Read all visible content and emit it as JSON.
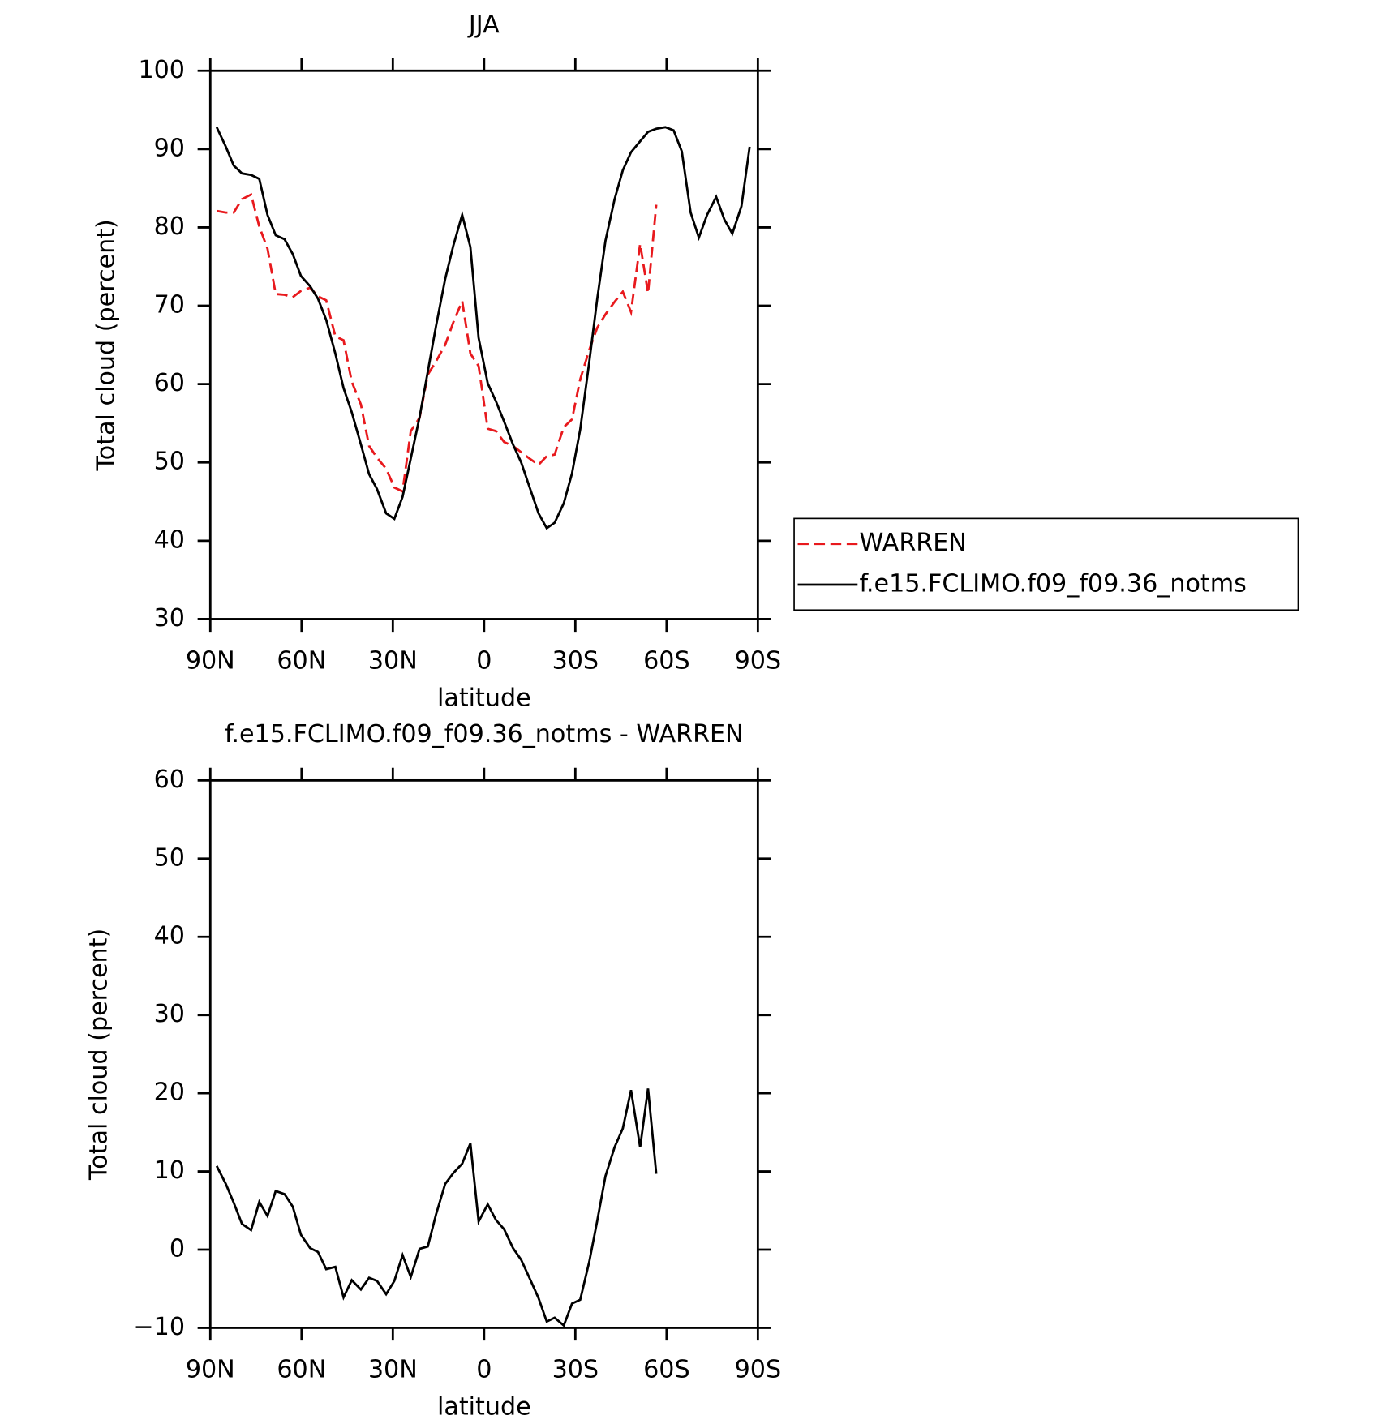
{
  "chart_data": [
    {
      "type": "line",
      "title": "JJA",
      "xlabel": "latitude",
      "ylabel": "Total cloud (percent)",
      "x": [
        87.9,
        84.9,
        82.3,
        79.6,
        76.6,
        73.9,
        71.2,
        68.5,
        65.6,
        62.9,
        60.2,
        57.2,
        54.6,
        51.9,
        48.9,
        46.2,
        43.5,
        40.5,
        37.8,
        35.2,
        32.2,
        29.5,
        26.8,
        24.1,
        21.2,
        18.5,
        15.8,
        12.8,
        10.1,
        7.2,
        4.5,
        1.8,
        -1.2,
        -3.9,
        -6.6,
        -9.5,
        -12.2,
        -14.9,
        -17.9,
        -20.6,
        -23.2,
        -26.2,
        -28.9,
        -31.6,
        -34.6,
        -37.2,
        -39.9,
        -42.9,
        -45.6,
        -48.3,
        -51.3,
        -53.9,
        -56.6,
        -59.6,
        -62.3,
        -65.0,
        -67.9,
        -70.6,
        -73.3,
        -76.3,
        -79.0,
        -81.6,
        -84.6,
        -87.3
      ],
      "series": [
        {
          "name": "WARREN",
          "color": "#e8191d",
          "linestyle": "dashed",
          "values": [
            82.1,
            81.9,
            81.9,
            83.6,
            84.2,
            80.1,
            77.3,
            71.5,
            71.4,
            71.1,
            71.9,
            72.3,
            71.2,
            70.7,
            66.1,
            65.6,
            60.3,
            57.4,
            52.1,
            50.6,
            49.2,
            46.8,
            46.3,
            54.0,
            55.7,
            61.2,
            62.9,
            65.0,
            67.9,
            70.6,
            63.9,
            62.3,
            54.3,
            54.0,
            52.6,
            52.1,
            51.3,
            50.5,
            49.7,
            50.8,
            51.0,
            54.5,
            55.5,
            60.6,
            64.4,
            67.2,
            68.9,
            70.5,
            71.8,
            69.2,
            77.9,
            71.6,
            82.9,
            null,
            null,
            null,
            null,
            null,
            null,
            null,
            null,
            null,
            null,
            null
          ]
        },
        {
          "name": "f.e15.FCLIMO.f09_f09.36_notms",
          "color": "#000000",
          "linestyle": "solid",
          "values": [
            92.8,
            90.3,
            87.9,
            86.9,
            86.7,
            86.2,
            81.6,
            79.0,
            78.5,
            76.6,
            73.8,
            72.5,
            70.9,
            68.2,
            63.9,
            59.5,
            56.4,
            52.3,
            48.5,
            46.6,
            43.5,
            42.8,
            45.6,
            50.5,
            55.8,
            61.6,
            67.4,
            73.4,
            77.7,
            81.6,
            77.5,
            65.9,
            60.1,
            57.8,
            55.2,
            52.3,
            50.0,
            46.9,
            43.5,
            41.6,
            42.3,
            44.8,
            48.6,
            54.2,
            62.9,
            70.9,
            78.3,
            83.6,
            87.3,
            89.6,
            91.0,
            92.2,
            92.6,
            92.8,
            92.4,
            89.7,
            81.9,
            78.7,
            81.6,
            83.9,
            81.0,
            79.2,
            82.7,
            90.3
          ]
        }
      ],
      "xlim": [
        90,
        -90
      ],
      "xticks": [
        {
          "value": 90,
          "label": "90N"
        },
        {
          "value": 60,
          "label": "60N"
        },
        {
          "value": 30,
          "label": "30N"
        },
        0,
        {
          "value": -30,
          "label": "30S"
        },
        {
          "value": -60,
          "label": "60S"
        },
        {
          "value": -90,
          "label": "90S"
        }
      ],
      "ylim": [
        30,
        100
      ],
      "yticks": [
        30,
        40,
        50,
        60,
        70,
        80,
        90,
        100
      ],
      "legend": "right"
    },
    {
      "type": "line",
      "title": "f.e15.FCLIMO.f09_f09.36_notms - WARREN",
      "xlabel": "latitude",
      "ylabel": "Total cloud (percent)",
      "x": [
        87.9,
        84.9,
        82.3,
        79.6,
        76.6,
        73.9,
        71.2,
        68.5,
        65.6,
        62.9,
        60.2,
        57.2,
        54.6,
        51.9,
        48.9,
        46.2,
        43.5,
        40.5,
        37.8,
        35.2,
        32.2,
        29.5,
        26.8,
        24.1,
        21.2,
        18.5,
        15.8,
        12.8,
        10.1,
        7.2,
        4.5,
        1.8,
        -1.2,
        -3.9,
        -6.6,
        -9.5,
        -12.2,
        -14.9,
        -17.9,
        -20.6,
        -23.2,
        -26.2,
        -28.9,
        -31.6,
        -34.6,
        -37.2,
        -39.9,
        -42.9,
        -45.6,
        -48.3,
        -51.3,
        -53.9,
        -56.6,
        -59.6,
        -62.3,
        -65.0,
        -67.9,
        -70.6,
        -73.3,
        -76.3,
        -79.0,
        -81.6,
        -84.6,
        -87.3
      ],
      "series": [
        {
          "color": "#000000",
          "linestyle": "solid",
          "values": [
            10.7,
            8.4,
            6.0,
            3.3,
            2.5,
            6.1,
            4.3,
            7.5,
            7.1,
            5.5,
            1.9,
            0.2,
            -0.3,
            -2.5,
            -2.2,
            -6.1,
            -3.9,
            -5.1,
            -3.6,
            -4.0,
            -5.7,
            -4.0,
            -0.7,
            -3.5,
            0.1,
            0.4,
            4.5,
            8.4,
            9.8,
            11.0,
            13.6,
            3.6,
            5.8,
            3.8,
            2.6,
            0.2,
            -1.3,
            -3.6,
            -6.2,
            -9.2,
            -8.7,
            -9.7,
            -6.9,
            -6.4,
            -1.5,
            3.7,
            9.4,
            13.1,
            15.5,
            20.4,
            13.1,
            20.6,
            9.7,
            null,
            null,
            null,
            null,
            null,
            null,
            null,
            null,
            null,
            null,
            null
          ]
        }
      ],
      "xlim": [
        90,
        -90
      ],
      "xticks": [
        {
          "value": 90,
          "label": "90N"
        },
        {
          "value": 60,
          "label": "60N"
        },
        {
          "value": 30,
          "label": "30N"
        },
        0,
        {
          "value": -30,
          "label": "30S"
        },
        {
          "value": -60,
          "label": "60S"
        },
        {
          "value": -90,
          "label": "90S"
        }
      ],
      "ylim": [
        -10,
        60
      ],
      "yticks": [
        {
          "value": -10,
          "label": "−10"
        },
        0,
        10,
        20,
        30,
        40,
        50,
        60
      ]
    }
  ]
}
